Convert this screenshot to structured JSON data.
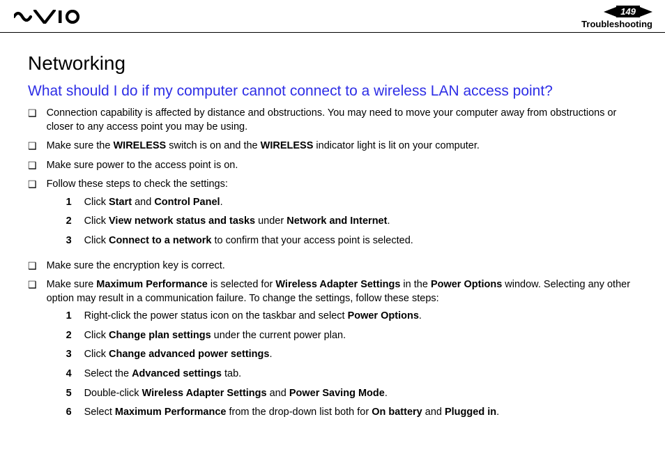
{
  "header": {
    "page_number": "149",
    "section_label": "Troubleshooting"
  },
  "colors": {
    "heading_black": "#000000",
    "subheading_blue": "#2e2ee6",
    "body_text": "#000000",
    "nav_bg": "#000000",
    "nav_fg": "#ffffff"
  },
  "typography": {
    "h1_fontsize": 28,
    "h2_fontsize": 21,
    "body_fontsize": 14.5,
    "h1_weight": "normal",
    "h2_weight": "normal"
  },
  "content": {
    "h1": "Networking",
    "h2": "What should I do if my computer cannot connect to a wireless LAN access point?",
    "bullets": [
      {
        "parts": [
          {
            "t": "Connection capability is affected by distance and obstructions. You may need to move your computer away from obstructions or closer to any access point you may be using."
          }
        ]
      },
      {
        "parts": [
          {
            "t": "Make sure the "
          },
          {
            "t": "WIRELESS",
            "b": true
          },
          {
            "t": " switch is on and the "
          },
          {
            "t": "WIRELESS",
            "b": true
          },
          {
            "t": " indicator light is lit on your computer."
          }
        ]
      },
      {
        "parts": [
          {
            "t": "Make sure power to the access point is on."
          }
        ]
      },
      {
        "parts": [
          {
            "t": "Follow these steps to check the settings:"
          }
        ],
        "steps": [
          [
            {
              "t": "Click "
            },
            {
              "t": "Start",
              "b": true
            },
            {
              "t": " and "
            },
            {
              "t": "Control Panel",
              "b": true
            },
            {
              "t": "."
            }
          ],
          [
            {
              "t": "Click "
            },
            {
              "t": "View network status and tasks",
              "b": true
            },
            {
              "t": " under "
            },
            {
              "t": "Network and Internet",
              "b": true
            },
            {
              "t": "."
            }
          ],
          [
            {
              "t": "Click "
            },
            {
              "t": "Connect to a network",
              "b": true
            },
            {
              "t": " to confirm that your access point is selected."
            }
          ]
        ]
      },
      {
        "parts": [
          {
            "t": "Make sure the encryption key is correct."
          }
        ]
      },
      {
        "parts": [
          {
            "t": "Make sure "
          },
          {
            "t": "Maximum Performance",
            "b": true
          },
          {
            "t": " is selected for "
          },
          {
            "t": "Wireless Adapter Settings",
            "b": true
          },
          {
            "t": " in the "
          },
          {
            "t": "Power Options",
            "b": true
          },
          {
            "t": " window. Selecting any other option may result in a communication failure. To change the settings, follow these steps:"
          }
        ],
        "steps": [
          [
            {
              "t": "Right-click the power status icon on the taskbar and select "
            },
            {
              "t": "Power Options",
              "b": true
            },
            {
              "t": "."
            }
          ],
          [
            {
              "t": "Click "
            },
            {
              "t": "Change plan settings",
              "b": true
            },
            {
              "t": " under the current power plan."
            }
          ],
          [
            {
              "t": "Click "
            },
            {
              "t": "Change advanced power settings",
              "b": true
            },
            {
              "t": "."
            }
          ],
          [
            {
              "t": "Select the "
            },
            {
              "t": "Advanced settings",
              "b": true
            },
            {
              "t": " tab."
            }
          ],
          [
            {
              "t": "Double-click "
            },
            {
              "t": "Wireless Adapter Settings",
              "b": true
            },
            {
              "t": " and "
            },
            {
              "t": "Power Saving Mode",
              "b": true
            },
            {
              "t": "."
            }
          ],
          [
            {
              "t": "Select "
            },
            {
              "t": "Maximum Performance",
              "b": true
            },
            {
              "t": " from the drop-down list both for "
            },
            {
              "t": "On battery",
              "b": true
            },
            {
              "t": " and "
            },
            {
              "t": "Plugged in",
              "b": true
            },
            {
              "t": "."
            }
          ]
        ]
      }
    ]
  }
}
